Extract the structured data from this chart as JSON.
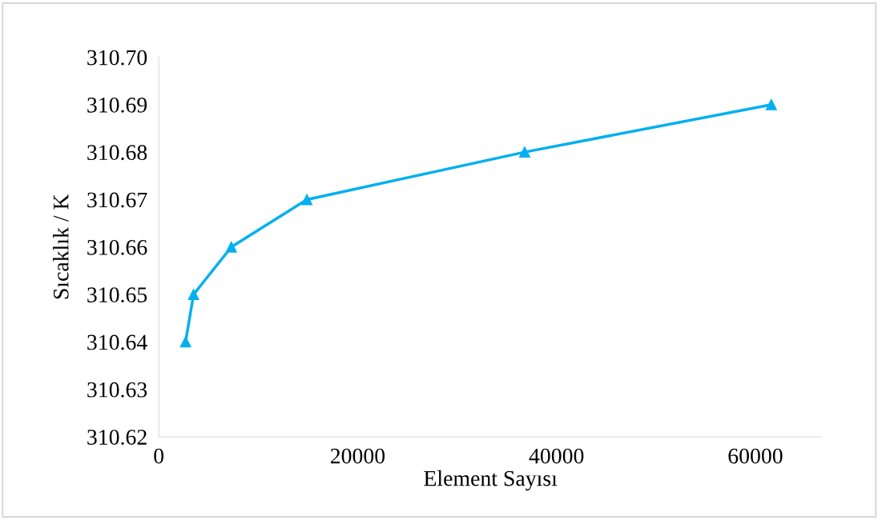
{
  "chart_data": {
    "type": "line",
    "xlabel": "Element Sayısı",
    "ylabel": "Sıcaklık / K",
    "x": [
      2700,
      3500,
      7300,
      14900,
      36800,
      61600
    ],
    "series": [
      {
        "color": "#00b0f0",
        "values": [
          310.64,
          310.65,
          310.66,
          310.67,
          310.68,
          310.69
        ]
      }
    ],
    "xlim": [
      0,
      66700
    ],
    "xticks": [
      0,
      20000,
      40000,
      60000
    ],
    "ylim": [
      310.62,
      310.7
    ],
    "yticks": [
      310.62,
      310.63,
      310.64,
      310.65,
      310.66,
      310.67,
      310.68,
      310.69,
      {
        "value": 310.7,
        "label": "310.70"
      }
    ],
    "grid": false,
    "legend": false,
    "marker": "triangle",
    "line_style": "solid"
  }
}
